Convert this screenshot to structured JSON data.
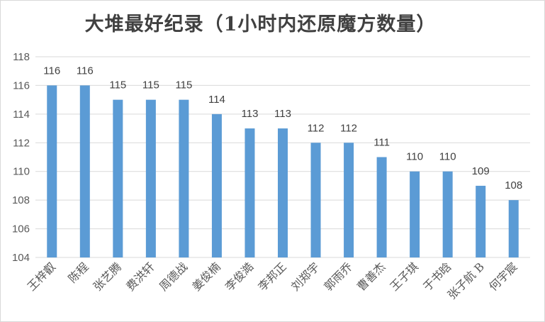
{
  "chart_data": {
    "type": "bar",
    "title": "大堆最好纪录（1小时内还原魔方数量）",
    "categories": [
      "王梓叡",
      "陈程",
      "张艺腾",
      "费洪轩",
      "周德战",
      "姜俊楠",
      "李俊澔",
      "李邦正",
      "刘郑宇",
      "郭雨乔",
      "曹善杰",
      "王子琪",
      "于书晗",
      "张子航 B",
      "何宇宸"
    ],
    "values": [
      116,
      116,
      115,
      115,
      115,
      114,
      113,
      113,
      112,
      112,
      111,
      110,
      110,
      109,
      108
    ],
    "xlabel": "",
    "ylabel": "",
    "ylim": [
      104,
      118
    ],
    "yticks": [
      104,
      106,
      108,
      110,
      112,
      114,
      116,
      118
    ],
    "grid": true,
    "legend": "none",
    "bar_color": "#5b9bd5",
    "grid_color": "#d9d9d9"
  }
}
